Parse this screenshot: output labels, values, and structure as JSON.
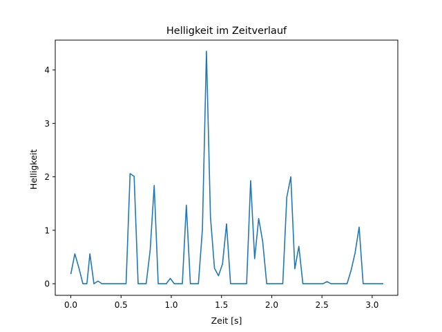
{
  "chart_data": {
    "type": "line",
    "title": "Helligkeit im Zeitverlauf",
    "xlabel": "Zeit [s]",
    "ylabel": "Helligkeit",
    "xlim": [
      -0.155,
      3.255
    ],
    "ylim": [
      -0.217,
      4.557
    ],
    "x_ticks": [
      0.0,
      0.5,
      1.0,
      1.5,
      2.0,
      2.5,
      3.0
    ],
    "x_tick_labels": [
      "0.0",
      "0.5",
      "1.0",
      "1.5",
      "2.0",
      "2.5",
      "3.0"
    ],
    "y_ticks": [
      0,
      1,
      2,
      3,
      4
    ],
    "y_tick_labels": [
      "0",
      "1",
      "2",
      "3",
      "4"
    ],
    "grid": false,
    "line_color": "#1f77b4",
    "series": [
      {
        "x": [
          0.0,
          0.04,
          0.08,
          0.12,
          0.16,
          0.19,
          0.23,
          0.27,
          0.31,
          0.35,
          0.39,
          0.43,
          0.47,
          0.51,
          0.55,
          0.59,
          0.63,
          0.67,
          0.71,
          0.75,
          0.79,
          0.83,
          0.87,
          0.91,
          0.95,
          0.99,
          1.03,
          1.07,
          1.11,
          1.15,
          1.19,
          1.23,
          1.27,
          1.31,
          1.35,
          1.39,
          1.43,
          1.47,
          1.51,
          1.55,
          1.59,
          1.63,
          1.67,
          1.71,
          1.75,
          1.79,
          1.83,
          1.87,
          1.91,
          1.95,
          1.99,
          2.03,
          2.07,
          2.11,
          2.15,
          2.19,
          2.23,
          2.27,
          2.31,
          2.35,
          2.39,
          2.43,
          2.47,
          2.51,
          2.55,
          2.59,
          2.63,
          2.67,
          2.71,
          2.75,
          2.79,
          2.83,
          2.87,
          2.91,
          2.95,
          2.99,
          3.03,
          3.07,
          3.11
        ],
        "y": [
          0.18,
          0.56,
          0.3,
          0.0,
          0.0,
          0.56,
          0.0,
          0.05,
          0.0,
          0.0,
          0.0,
          0.0,
          0.0,
          0.0,
          0.0,
          2.06,
          2.01,
          0.0,
          0.0,
          0.0,
          0.63,
          1.84,
          0.0,
          0.0,
          0.0,
          0.1,
          0.0,
          0.0,
          0.0,
          1.47,
          0.0,
          0.0,
          0.0,
          1.02,
          4.35,
          1.25,
          0.29,
          0.15,
          0.37,
          1.12,
          0.0,
          0.0,
          0.0,
          0.0,
          0.0,
          1.93,
          0.47,
          1.22,
          0.79,
          0.0,
          0.0,
          0.0,
          0.0,
          0.0,
          1.62,
          2.0,
          0.28,
          0.7,
          0.0,
          0.0,
          0.0,
          0.0,
          0.0,
          0.0,
          0.04,
          0.0,
          0.0,
          0.0,
          0.0,
          0.0,
          0.25,
          0.58,
          1.06,
          0.0,
          0.0,
          0.0,
          0.0,
          0.0,
          0.0
        ]
      }
    ]
  }
}
